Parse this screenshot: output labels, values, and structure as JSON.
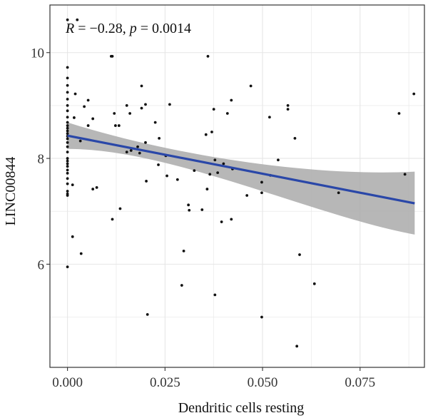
{
  "chart_data": {
    "type": "scatter",
    "xlabel": "Dendritic cells resting",
    "ylabel": "LINC00844",
    "annotation": {
      "r_label": "R",
      "r_value": " = −0.28, ",
      "p_label": "p",
      "p_value": " = 0.0014"
    },
    "xlim": [
      -0.0045,
      0.0915
    ],
    "ylim": [
      4.05,
      10.9
    ],
    "x_ticks": [
      0.0,
      0.025,
      0.05,
      0.075
    ],
    "x_tick_labels": [
      "0.000",
      "0.025",
      "0.050",
      "0.075"
    ],
    "y_ticks": [
      6,
      8,
      10
    ],
    "y_tick_labels": [
      "6",
      "8",
      "10"
    ],
    "grid": true,
    "colors": {
      "points": "#111111",
      "fit_line": "#2a47a8",
      "confidence_band": "#aaaaaa",
      "grid": "#e6e6e6",
      "frame": "#333333"
    },
    "regression": {
      "x": [
        0.0,
        0.089
      ],
      "y": [
        8.43,
        7.15
      ],
      "band_lower": [
        8.18,
        6.56
      ],
      "band_mid": [
        8.06,
        7.65
      ],
      "band_upper": [
        8.68,
        7.75
      ]
    },
    "points": [
      {
        "x": 0.0,
        "y": 10.62
      },
      {
        "x": 0.0,
        "y": 9.72
      },
      {
        "x": 0.0,
        "y": 9.52
      },
      {
        "x": 0.0,
        "y": 9.38
      },
      {
        "x": 0.0,
        "y": 9.25
      },
      {
        "x": 0.0,
        "y": 9.12
      },
      {
        "x": 0.0,
        "y": 9.0
      },
      {
        "x": 0.0,
        "y": 8.9
      },
      {
        "x": 0.0,
        "y": 8.78
      },
      {
        "x": 0.0,
        "y": 8.68
      },
      {
        "x": 0.0,
        "y": 8.62
      },
      {
        "x": 0.0,
        "y": 8.57
      },
      {
        "x": 0.0,
        "y": 8.52
      },
      {
        "x": 0.0,
        "y": 8.47
      },
      {
        "x": 0.0,
        "y": 8.42
      },
      {
        "x": 0.0,
        "y": 8.37
      },
      {
        "x": 0.0,
        "y": 8.3
      },
      {
        "x": 0.0,
        "y": 8.22
      },
      {
        "x": 0.0,
        "y": 8.12
      },
      {
        "x": 0.0,
        "y": 8.0
      },
      {
        "x": 0.0,
        "y": 7.95
      },
      {
        "x": 0.0,
        "y": 7.9
      },
      {
        "x": 0.0,
        "y": 7.85
      },
      {
        "x": 0.0,
        "y": 7.78
      },
      {
        "x": 0.0,
        "y": 7.72
      },
      {
        "x": 0.0,
        "y": 7.62
      },
      {
        "x": 0.0,
        "y": 7.52
      },
      {
        "x": 0.0,
        "y": 7.38
      },
      {
        "x": 0.0,
        "y": 7.33
      },
      {
        "x": 0.0,
        "y": 7.3
      },
      {
        "x": 0.0,
        "y": 5.95
      },
      {
        "x": 0.0025,
        "y": 10.62
      },
      {
        "x": 0.0013,
        "y": 6.52
      },
      {
        "x": 0.0013,
        "y": 7.5
      },
      {
        "x": 0.0017,
        "y": 8.77
      },
      {
        "x": 0.002,
        "y": 9.22
      },
      {
        "x": 0.0033,
        "y": 8.33
      },
      {
        "x": 0.0035,
        "y": 6.2
      },
      {
        "x": 0.0043,
        "y": 8.98
      },
      {
        "x": 0.0053,
        "y": 9.1
      },
      {
        "x": 0.0053,
        "y": 8.62
      },
      {
        "x": 0.0065,
        "y": 8.75
      },
      {
        "x": 0.0065,
        "y": 7.42
      },
      {
        "x": 0.0075,
        "y": 7.45
      },
      {
        "x": 0.0112,
        "y": 9.93
      },
      {
        "x": 0.0115,
        "y": 9.93
      },
      {
        "x": 0.0115,
        "y": 6.85
      },
      {
        "x": 0.012,
        "y": 8.85
      },
      {
        "x": 0.0123,
        "y": 8.62
      },
      {
        "x": 0.0132,
        "y": 8.62
      },
      {
        "x": 0.0135,
        "y": 7.05
      },
      {
        "x": 0.0152,
        "y": 9.0
      },
      {
        "x": 0.0152,
        "y": 8.12
      },
      {
        "x": 0.016,
        "y": 8.85
      },
      {
        "x": 0.0163,
        "y": 8.15
      },
      {
        "x": 0.018,
        "y": 8.22
      },
      {
        "x": 0.0185,
        "y": 8.1
      },
      {
        "x": 0.019,
        "y": 9.37
      },
      {
        "x": 0.019,
        "y": 8.95
      },
      {
        "x": 0.02,
        "y": 9.02
      },
      {
        "x": 0.02,
        "y": 8.3
      },
      {
        "x": 0.0202,
        "y": 7.57
      },
      {
        "x": 0.0205,
        "y": 5.05
      },
      {
        "x": 0.0225,
        "y": 8.68
      },
      {
        "x": 0.0233,
        "y": 7.88
      },
      {
        "x": 0.0235,
        "y": 8.38
      },
      {
        "x": 0.0252,
        "y": 8.05
      },
      {
        "x": 0.0255,
        "y": 7.67
      },
      {
        "x": 0.0262,
        "y": 9.02
      },
      {
        "x": 0.0282,
        "y": 7.6
      },
      {
        "x": 0.0293,
        "y": 5.6
      },
      {
        "x": 0.0298,
        "y": 6.25
      },
      {
        "x": 0.031,
        "y": 7.12
      },
      {
        "x": 0.0312,
        "y": 7.02
      },
      {
        "x": 0.0325,
        "y": 7.77
      },
      {
        "x": 0.0345,
        "y": 7.03
      },
      {
        "x": 0.0355,
        "y": 8.45
      },
      {
        "x": 0.0358,
        "y": 7.42
      },
      {
        "x": 0.036,
        "y": 9.93
      },
      {
        "x": 0.0365,
        "y": 7.7
      },
      {
        "x": 0.037,
        "y": 8.5
      },
      {
        "x": 0.0375,
        "y": 8.93
      },
      {
        "x": 0.0378,
        "y": 7.97
      },
      {
        "x": 0.0378,
        "y": 5.42
      },
      {
        "x": 0.0385,
        "y": 7.73
      },
      {
        "x": 0.0395,
        "y": 6.8
      },
      {
        "x": 0.04,
        "y": 7.9
      },
      {
        "x": 0.041,
        "y": 8.85
      },
      {
        "x": 0.042,
        "y": 9.1
      },
      {
        "x": 0.042,
        "y": 6.85
      },
      {
        "x": 0.0423,
        "y": 7.8
      },
      {
        "x": 0.046,
        "y": 7.3
      },
      {
        "x": 0.047,
        "y": 9.37
      },
      {
        "x": 0.0498,
        "y": 7.55
      },
      {
        "x": 0.0498,
        "y": 7.35
      },
      {
        "x": 0.0498,
        "y": 5.0
      },
      {
        "x": 0.0518,
        "y": 8.78
      },
      {
        "x": 0.052,
        "y": 7.68
      },
      {
        "x": 0.054,
        "y": 7.97
      },
      {
        "x": 0.0565,
        "y": 9.0
      },
      {
        "x": 0.0565,
        "y": 8.93
      },
      {
        "x": 0.0583,
        "y": 8.38
      },
      {
        "x": 0.0588,
        "y": 4.45
      },
      {
        "x": 0.0595,
        "y": 6.18
      },
      {
        "x": 0.0633,
        "y": 5.63
      },
      {
        "x": 0.0695,
        "y": 7.35
      },
      {
        "x": 0.085,
        "y": 8.85
      },
      {
        "x": 0.0865,
        "y": 7.7
      },
      {
        "x": 0.0888,
        "y": 9.22
      }
    ]
  }
}
